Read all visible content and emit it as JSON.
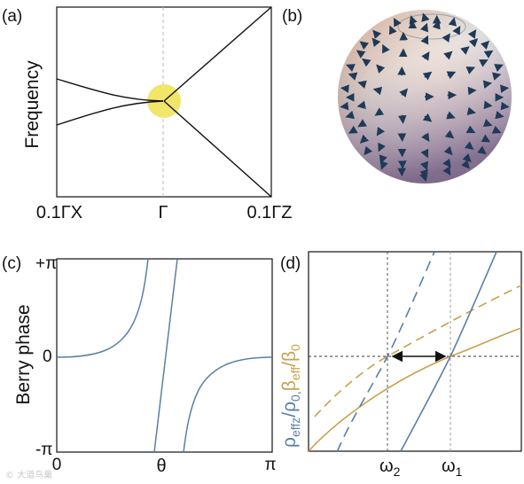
{
  "panels": {
    "a": {
      "label": "(a)",
      "ylabel": "Frequency",
      "xticks": [
        "0.1ΓX",
        "Γ",
        "0.1ΓZ"
      ]
    },
    "b": {
      "label": "(b)"
    },
    "c": {
      "label": "(c)",
      "ylabel": "Berry phase",
      "yticks": [
        "+π",
        "0",
        "-π"
      ],
      "xticks": [
        "0",
        "θ",
        "π"
      ]
    },
    "d": {
      "label": "(d)",
      "ylabel_part1": "ρ",
      "ylabel_sub1": "effz",
      "ylabel_part2": "/ρ",
      "ylabel_sub2": "0,",
      "ylabel_part3": "β",
      "ylabel_sub3": "eff",
      "ylabel_part4": "/β",
      "ylabel_sub4": "0",
      "xtick1_main": "ω",
      "xtick1_sub": "2",
      "xtick2_main": "ω",
      "xtick2_sub": "1"
    }
  },
  "colors": {
    "blue": "#5a7fa6",
    "gold": "#c9a04a",
    "highlight": "#f1e56a",
    "arrow": "#1e3a57"
  },
  "watermark": "© 大道鸟巢"
}
